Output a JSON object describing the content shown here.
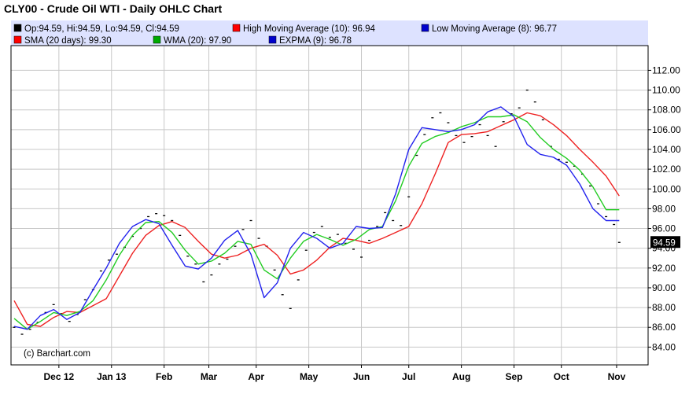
{
  "title": "CLY00 - Crude Oil WTI - Daily OHLC Chart",
  "credit": "(c) Barchart.com",
  "legend": [
    {
      "label": "Op:94.59, Hi:94.59, Lo:94.59, Cl:94.59",
      "color": "#000000"
    },
    {
      "label": "High Moving Average (10): 96.94",
      "color": "#ff0000"
    },
    {
      "label": "Low Moving Average (8): 96.77",
      "color": "#0000cc"
    },
    {
      "label": "SMA (20 days): 99.30",
      "color": "#ff0000"
    },
    {
      "label": "WMA (20): 97.90",
      "color": "#00aa00"
    },
    {
      "label": "EXPMA (9): 96.78",
      "color": "#0000cc"
    }
  ],
  "colors": {
    "legend_bg": "#dde2ff",
    "grid": "#c8c8c8",
    "sma": "#ee2222",
    "wma": "#22cc22",
    "expma": "#2222ee",
    "ohlc": "#000000"
  },
  "chart_data": {
    "type": "line",
    "title": "CLY00 - Crude Oil WTI - Daily OHLC Chart",
    "ylim": [
      82.2,
      114.5
    ],
    "yticks": [
      84,
      86,
      88,
      90,
      92,
      94,
      96,
      98,
      100,
      102,
      104,
      106,
      108,
      110,
      112
    ],
    "ytick_labels": [
      "84.00",
      "86.00",
      "88.00",
      "90.00",
      "92.00",
      "94.00",
      "96.00",
      "98.00",
      "100.00",
      "102.00",
      "104.00",
      "106.00",
      "108.00",
      "110.00",
      "112.00"
    ],
    "xlim": [
      0,
      232
    ],
    "xticks": [
      {
        "label": "Dec 12",
        "x": 17
      },
      {
        "label": "Jan 13",
        "x": 37
      },
      {
        "label": "Feb",
        "x": 57
      },
      {
        "label": "Mar",
        "x": 74
      },
      {
        "label": "Apr",
        "x": 92
      },
      {
        "label": "May",
        "x": 112
      },
      {
        "label": "Jun",
        "x": 132
      },
      {
        "label": "Jul",
        "x": 150
      },
      {
        "label": "Aug",
        "x": 170
      },
      {
        "label": "Sep",
        "x": 190
      },
      {
        "label": "Oct",
        "x": 208
      },
      {
        "label": "Nov",
        "x": 229
      }
    ],
    "last_value": "94.59",
    "grid": true,
    "series": [
      {
        "name": "OHLC",
        "style": "bars",
        "x": [
          0,
          3,
          6,
          9,
          12,
          15,
          18,
          21,
          24,
          27,
          30,
          33,
          36,
          39,
          42,
          45,
          48,
          51,
          54,
          57,
          60,
          63,
          66,
          69,
          72,
          75,
          78,
          81,
          84,
          87,
          90,
          93,
          96,
          99,
          102,
          105,
          108,
          111,
          114,
          117,
          120,
          123,
          126,
          129,
          132,
          135,
          138,
          141,
          144,
          147,
          150,
          153,
          156,
          159,
          162,
          165,
          168,
          171,
          174,
          177,
          180,
          183,
          186,
          189,
          192,
          195,
          198,
          201,
          204,
          207,
          210,
          213,
          216,
          219,
          222,
          225,
          228,
          230
        ],
        "y": [
          86.0,
          85.3,
          85.8,
          86.5,
          87.5,
          88.3,
          87.4,
          86.6,
          87.3,
          88.8,
          89.8,
          91.7,
          92.8,
          93.4,
          94.1,
          95.2,
          96.0,
          97.2,
          97.5,
          97.3,
          96.8,
          95.3,
          93.2,
          92.4,
          90.6,
          91.3,
          92.4,
          92.9,
          94.2,
          95.9,
          96.8,
          95.0,
          94.2,
          91.8,
          89.3,
          87.9,
          90.8,
          93.8,
          95.6,
          96.2,
          95.1,
          95.4,
          94.5,
          93.9,
          93.1,
          94.8,
          96.2,
          97.6,
          96.8,
          96.3,
          99.2,
          103.4,
          105.5,
          107.2,
          107.7,
          106.7,
          105.4,
          104.7,
          105.3,
          106.5,
          105.4,
          104.3,
          106.8,
          107.6,
          108.2,
          110.0,
          108.8,
          107.0,
          104.3,
          103.0,
          102.7,
          102.3,
          101.5,
          100.3,
          98.5,
          97.2,
          96.4,
          94.59
        ]
      },
      {
        "name": "SMA (20 days)",
        "style": "line",
        "color": "#ee2222",
        "x": [
          0,
          5,
          10,
          15,
          20,
          25,
          30,
          35,
          40,
          45,
          50,
          55,
          60,
          65,
          70,
          75,
          80,
          85,
          90,
          95,
          100,
          105,
          110,
          115,
          120,
          125,
          130,
          135,
          140,
          145,
          150,
          155,
          160,
          165,
          170,
          175,
          180,
          185,
          190,
          195,
          200,
          205,
          210,
          215,
          220,
          225,
          230
        ],
        "y": [
          88.7,
          86.3,
          86.1,
          87.0,
          87.6,
          87.5,
          88.2,
          88.9,
          91.2,
          93.5,
          95.3,
          96.3,
          96.7,
          96.1,
          94.7,
          93.4,
          93.0,
          93.3,
          94.0,
          94.4,
          93.3,
          91.4,
          91.8,
          92.8,
          94.1,
          95.0,
          94.8,
          94.5,
          95.0,
          95.6,
          96.2,
          98.5,
          101.5,
          104.7,
          105.5,
          105.6,
          105.8,
          106.4,
          107.0,
          107.7,
          107.4,
          106.5,
          105.4,
          104.0,
          102.7,
          101.3,
          99.3
        ]
      },
      {
        "name": "WMA (20)",
        "style": "line",
        "color": "#22cc22",
        "x": [
          0,
          5,
          10,
          15,
          20,
          25,
          30,
          35,
          40,
          45,
          50,
          55,
          60,
          65,
          70,
          75,
          80,
          85,
          90,
          95,
          100,
          105,
          110,
          115,
          120,
          125,
          130,
          135,
          140,
          145,
          150,
          155,
          160,
          165,
          170,
          175,
          180,
          185,
          190,
          195,
          200,
          205,
          210,
          215,
          220,
          225,
          230
        ],
        "y": [
          86.9,
          85.8,
          86.6,
          87.5,
          87.2,
          87.6,
          88.7,
          90.8,
          93.3,
          95.3,
          96.6,
          96.7,
          95.6,
          93.8,
          92.4,
          92.7,
          93.5,
          94.7,
          94.4,
          91.8,
          90.9,
          93.0,
          94.7,
          95.4,
          94.9,
          94.3,
          94.9,
          95.9,
          96.2,
          98.8,
          102.3,
          104.6,
          105.3,
          105.7,
          106.3,
          106.7,
          107.3,
          107.3,
          107.5,
          106.8,
          105.2,
          104.0,
          103.1,
          101.9,
          100.2,
          97.9,
          97.9
        ]
      },
      {
        "name": "EXPMA (9)",
        "style": "line",
        "color": "#2222ee",
        "x": [
          0,
          5,
          10,
          15,
          20,
          25,
          30,
          35,
          40,
          45,
          50,
          55,
          60,
          65,
          70,
          75,
          80,
          85,
          90,
          95,
          100,
          105,
          110,
          115,
          120,
          125,
          130,
          135,
          140,
          145,
          150,
          155,
          160,
          165,
          170,
          175,
          180,
          185,
          190,
          195,
          200,
          205,
          210,
          215,
          220,
          225,
          230
        ],
        "y": [
          86.1,
          85.8,
          87.2,
          87.8,
          86.8,
          87.5,
          89.8,
          92.0,
          94.5,
          96.2,
          96.9,
          96.5,
          94.3,
          92.2,
          91.9,
          93.0,
          94.8,
          95.8,
          93.4,
          89.0,
          90.5,
          94.0,
          95.6,
          95.0,
          94.0,
          94.5,
          96.2,
          96.0,
          96.1,
          99.5,
          104.0,
          106.2,
          106.0,
          105.8,
          106.0,
          106.5,
          107.8,
          108.3,
          107.3,
          104.5,
          103.5,
          103.2,
          102.4,
          100.5,
          98.0,
          96.8,
          96.8
        ]
      },
      {
        "name": "High Moving Average (10)",
        "style": "line",
        "color": "#ee2222",
        "x": [],
        "y": []
      },
      {
        "name": "Low Moving Average (8)",
        "style": "line",
        "color": "#2222ee",
        "x": [],
        "y": []
      }
    ]
  }
}
